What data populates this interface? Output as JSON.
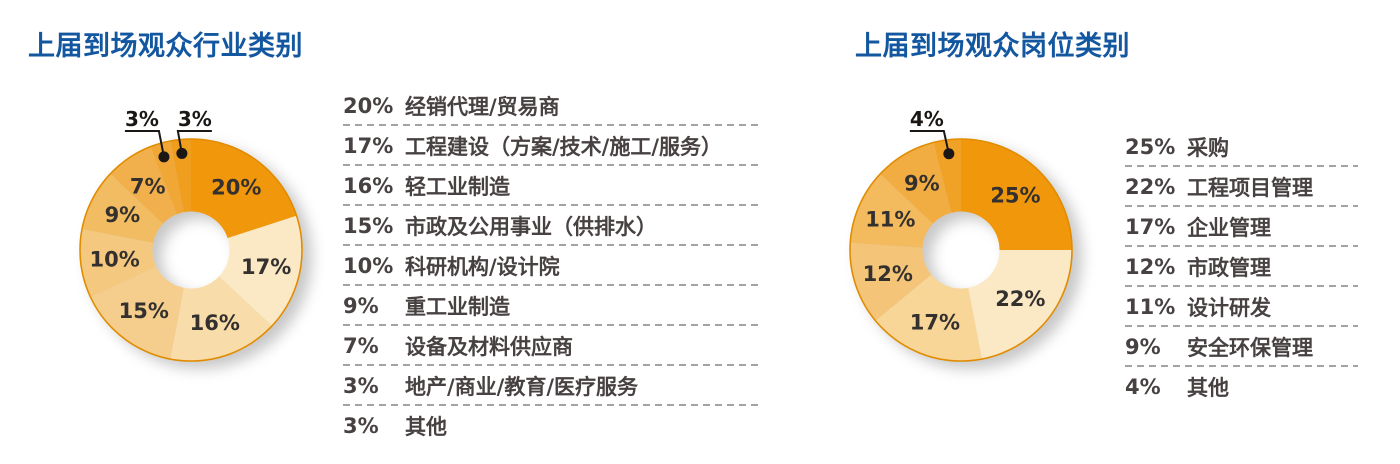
{
  "chart_data": [
    {
      "type": "pie",
      "subtype": "donut",
      "title": "上届到场观众行业类别",
      "title_color": "#1357A0",
      "units": "percent",
      "direction": "clockwise",
      "start_angle_deg": 0,
      "legend_position": "right",
      "label_color": "#33302e",
      "slices": [
        {
          "label": "经销代理/贸易商",
          "value": 20,
          "color": "#F0970C"
        },
        {
          "label": "工程建设（方案/技术/施工/服务）",
          "value": 17,
          "color": "#FBE9C6"
        },
        {
          "label": "轻工业制造",
          "value": 16,
          "color": "#F8DCA9"
        },
        {
          "label": "市政及公用事业（供排水）",
          "value": 15,
          "color": "#F5CE8D"
        },
        {
          "label": "科研机构/设计院",
          "value": 10,
          "color": "#F5C87F"
        },
        {
          "label": "重工业制造",
          "value": 9,
          "color": "#F2BC63"
        },
        {
          "label": "设备及材料供应商",
          "value": 7,
          "color": "#F1B04B"
        },
        {
          "label": "地产/商业/教育/医疗服务",
          "value": 3,
          "color": "#F0A736",
          "callout": true,
          "callout_label_dx": -22
        },
        {
          "label": "其他",
          "value": 3,
          "color": "#EF9E1E",
          "callout": true,
          "callout_label_dx": 13
        }
      ]
    },
    {
      "type": "pie",
      "subtype": "donut",
      "title": "上届到场观众岗位类别",
      "title_color": "#1357A0",
      "units": "percent",
      "direction": "clockwise",
      "start_angle_deg": 0,
      "legend_position": "right",
      "label_color": "#33302e",
      "slices": [
        {
          "label": "采购",
          "value": 25,
          "color": "#F0970C"
        },
        {
          "label": "工程项目管理",
          "value": 22,
          "color": "#FBE9C6"
        },
        {
          "label": "企业管理",
          "value": 17,
          "color": "#F7D697"
        },
        {
          "label": "市政管理",
          "value": 12,
          "color": "#F4C478"
        },
        {
          "label": "设计研发",
          "value": 11,
          "color": "#F3BA5E"
        },
        {
          "label": "安全环保管理",
          "value": 9,
          "color": "#F1AD42"
        },
        {
          "label": "其他",
          "value": 4,
          "color": "#F0A227",
          "callout": true,
          "callout_label_dx": -22
        }
      ]
    }
  ],
  "style": {
    "rim_color": "#E18C00",
    "callout_ink": "#1a1715",
    "dash_color": "#a2a3a3"
  }
}
